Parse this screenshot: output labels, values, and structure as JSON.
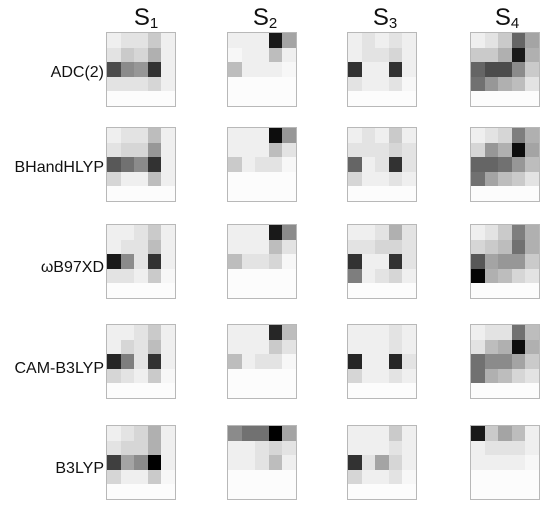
{
  "columns": [
    {
      "label": "S",
      "sub": "1"
    },
    {
      "label": "S",
      "sub": "2"
    },
    {
      "label": "S",
      "sub": "3"
    },
    {
      "label": "S",
      "sub": "4"
    }
  ],
  "rows": [
    {
      "label": "ADC(2)",
      "panels": [
        [
          [
            0.05,
            0.1,
            0.1,
            0.2,
            0.05
          ],
          [
            0.1,
            0.2,
            0.15,
            0.3,
            0.05
          ],
          [
            0.7,
            0.45,
            0.4,
            0.8,
            0.05
          ],
          [
            0.1,
            0.1,
            0.1,
            0.15,
            0.05
          ],
          [
            0,
            0,
            0,
            0,
            0
          ]
        ],
        [
          [
            0.05,
            0.05,
            0.05,
            0.9,
            0.35
          ],
          [
            0.02,
            0.05,
            0.05,
            0.25,
            0.05
          ],
          [
            0.25,
            0.05,
            0.05,
            0.05,
            0.02
          ],
          [
            0,
            0,
            0,
            0,
            0
          ],
          [
            0,
            0,
            0,
            0,
            0
          ]
        ],
        [
          [
            0.05,
            0.1,
            0.05,
            0.1,
            0.05
          ],
          [
            0.05,
            0.1,
            0.1,
            0.15,
            0.05
          ],
          [
            0.8,
            0.05,
            0.05,
            0.8,
            0.05
          ],
          [
            0.1,
            0.05,
            0.05,
            0.1,
            0.02
          ],
          [
            0,
            0,
            0,
            0,
            0
          ]
        ],
        [
          [
            0.05,
            0.1,
            0.2,
            0.6,
            0.35
          ],
          [
            0.2,
            0.2,
            0.3,
            0.9,
            0.3
          ],
          [
            0.6,
            0.7,
            0.7,
            0.45,
            0.2
          ],
          [
            0.55,
            0.4,
            0.3,
            0.25,
            0.1
          ],
          [
            0,
            0,
            0,
            0,
            0
          ]
        ]
      ]
    },
    {
      "label": "BHandHLYP",
      "panels": [
        [
          [
            0.05,
            0.1,
            0.1,
            0.25,
            0.05
          ],
          [
            0.1,
            0.15,
            0.15,
            0.4,
            0.05
          ],
          [
            0.65,
            0.55,
            0.45,
            0.8,
            0.05
          ],
          [
            0.15,
            0.05,
            0.05,
            0.25,
            0.05
          ],
          [
            0,
            0,
            0,
            0,
            0
          ]
        ],
        [
          [
            0.05,
            0.05,
            0.05,
            0.95,
            0.4
          ],
          [
            0.05,
            0.05,
            0.05,
            0.25,
            0.1
          ],
          [
            0.2,
            0.05,
            0.1,
            0.1,
            0.02
          ],
          [
            0,
            0,
            0,
            0,
            0
          ],
          [
            0,
            0,
            0,
            0,
            0
          ]
        ],
        [
          [
            0.05,
            0.1,
            0.05,
            0.2,
            0.05
          ],
          [
            0.1,
            0.1,
            0.1,
            0.15,
            0.1
          ],
          [
            0.6,
            0.05,
            0.1,
            0.8,
            0.1
          ],
          [
            0.15,
            0.05,
            0.05,
            0.1,
            0.05
          ],
          [
            0,
            0,
            0,
            0,
            0
          ]
        ],
        [
          [
            0.05,
            0.1,
            0.15,
            0.5,
            0.3
          ],
          [
            0.15,
            0.4,
            0.3,
            0.95,
            0.35
          ],
          [
            0.6,
            0.6,
            0.55,
            0.4,
            0.25
          ],
          [
            0.55,
            0.35,
            0.25,
            0.2,
            0.1
          ],
          [
            0,
            0,
            0,
            0,
            0
          ]
        ]
      ]
    },
    {
      "label": "ωB97XD",
      "panels": [
        [
          [
            0.05,
            0.05,
            0.1,
            0.2,
            0.05
          ],
          [
            0.05,
            0.1,
            0.1,
            0.25,
            0.05
          ],
          [
            0.9,
            0.45,
            0.1,
            0.8,
            0.05
          ],
          [
            0.1,
            0.1,
            0.05,
            0.2,
            0.02
          ],
          [
            0,
            0,
            0,
            0,
            0
          ]
        ],
        [
          [
            0.05,
            0.05,
            0.05,
            0.9,
            0.45
          ],
          [
            0.05,
            0.05,
            0.05,
            0.25,
            0.1
          ],
          [
            0.25,
            0.1,
            0.1,
            0.15,
            0.02
          ],
          [
            0,
            0,
            0,
            0,
            0
          ],
          [
            0,
            0,
            0,
            0,
            0
          ]
        ],
        [
          [
            0.05,
            0.05,
            0.1,
            0.3,
            0.1
          ],
          [
            0.1,
            0.1,
            0.15,
            0.15,
            0.1
          ],
          [
            0.8,
            0.05,
            0.05,
            0.8,
            0.1
          ],
          [
            0.5,
            0.05,
            0.1,
            0.15,
            0.05
          ],
          [
            0,
            0,
            0,
            0,
            0
          ]
        ],
        [
          [
            0.05,
            0.1,
            0.2,
            0.5,
            0.3
          ],
          [
            0.15,
            0.2,
            0.25,
            0.55,
            0.3
          ],
          [
            0.65,
            0.35,
            0.4,
            0.4,
            0.2
          ],
          [
            0.98,
            0.3,
            0.25,
            0.15,
            0.1
          ],
          [
            0,
            0,
            0,
            0,
            0
          ]
        ]
      ]
    },
    {
      "label": "CAM-B3LYP",
      "panels": [
        [
          [
            0.05,
            0.05,
            0.1,
            0.2,
            0.05
          ],
          [
            0.05,
            0.15,
            0.1,
            0.25,
            0.05
          ],
          [
            0.85,
            0.5,
            0.1,
            0.8,
            0.05
          ],
          [
            0.15,
            0.1,
            0.05,
            0.2,
            0.02
          ],
          [
            0,
            0,
            0,
            0,
            0
          ]
        ],
        [
          [
            0.05,
            0.05,
            0.05,
            0.85,
            0.25
          ],
          [
            0.05,
            0.05,
            0.05,
            0.2,
            0.1
          ],
          [
            0.25,
            0.05,
            0.1,
            0.1,
            0.02
          ],
          [
            0,
            0,
            0,
            0,
            0
          ],
          [
            0,
            0,
            0,
            0,
            0
          ]
        ],
        [
          [
            0.05,
            0.05,
            0.05,
            0.1,
            0.05
          ],
          [
            0.05,
            0.05,
            0.05,
            0.1,
            0.05
          ],
          [
            0.85,
            0.05,
            0.05,
            0.85,
            0.1
          ],
          [
            0.15,
            0.05,
            0.05,
            0.1,
            0.05
          ],
          [
            0,
            0,
            0,
            0,
            0
          ]
        ],
        [
          [
            0.05,
            0.1,
            0.1,
            0.55,
            0.25
          ],
          [
            0.1,
            0.25,
            0.3,
            0.95,
            0.3
          ],
          [
            0.55,
            0.45,
            0.45,
            0.35,
            0.2
          ],
          [
            0.55,
            0.3,
            0.25,
            0.15,
            0.1
          ],
          [
            0,
            0,
            0,
            0,
            0
          ]
        ]
      ]
    },
    {
      "label": "B3LYP",
      "panels": [
        [
          [
            0.05,
            0.1,
            0.15,
            0.3,
            0.05
          ],
          [
            0.1,
            0.15,
            0.15,
            0.3,
            0.05
          ],
          [
            0.75,
            0.35,
            0.45,
            1.0,
            0.05
          ],
          [
            0.15,
            0.05,
            0.05,
            0.2,
            0.02
          ],
          [
            0,
            0,
            0,
            0,
            0
          ]
        ],
        [
          [
            0.45,
            0.55,
            0.55,
            1.0,
            0.35
          ],
          [
            0.05,
            0.05,
            0.1,
            0.15,
            0.1
          ],
          [
            0.05,
            0.05,
            0.1,
            0.25,
            0.05
          ],
          [
            0,
            0,
            0,
            0,
            0
          ],
          [
            0,
            0,
            0,
            0,
            0
          ]
        ],
        [
          [
            0.05,
            0.05,
            0.05,
            0.2,
            0.05
          ],
          [
            0.05,
            0.05,
            0.05,
            0.1,
            0.05
          ],
          [
            0.8,
            0.1,
            0.35,
            0.15,
            0.05
          ],
          [
            0.15,
            0.05,
            0.05,
            0.1,
            0.02
          ],
          [
            0,
            0,
            0,
            0,
            0
          ]
        ],
        [
          [
            0.9,
            0.2,
            0.35,
            0.25,
            0.05
          ],
          [
            0.05,
            0.1,
            0.1,
            0.1,
            0.05
          ],
          [
            0.05,
            0.05,
            0.05,
            0.05,
            0.02
          ],
          [
            0,
            0,
            0,
            0,
            0
          ],
          [
            0,
            0,
            0,
            0,
            0
          ]
        ]
      ]
    }
  ]
}
